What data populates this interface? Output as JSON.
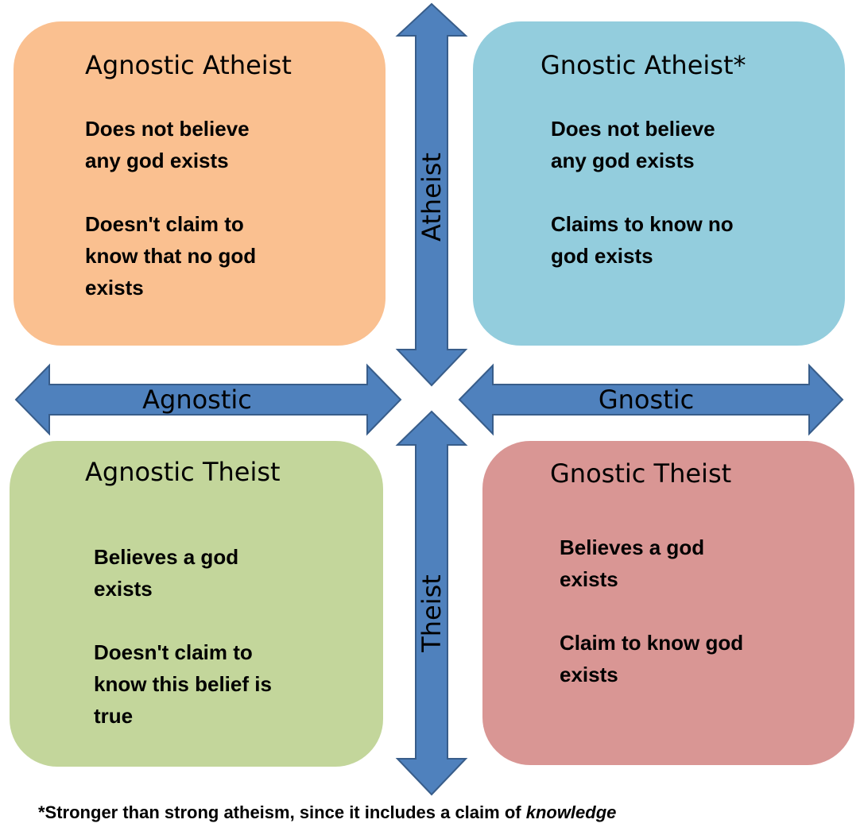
{
  "colors": {
    "agnostic_atheist_fill": "#FAC090",
    "gnostic_atheist_fill": "#93CDDD",
    "agnostic_theist_fill": "#C3D69B",
    "gnostic_theist_fill": "#D99694",
    "arrow_fill": "#4F81BD",
    "arrow_stroke": "#385D8A"
  },
  "quadrants": {
    "agnostic_atheist": {
      "title": "Agnostic Atheist",
      "belief": "Does not believe\nany god exists",
      "knowledge": "Doesn't claim to\nknow that no god\nexists"
    },
    "gnostic_atheist": {
      "title": "Gnostic Atheist*",
      "belief": "Does not believe\nany god exists",
      "knowledge": "Claims to know no\ngod exists"
    },
    "agnostic_theist": {
      "title": "Agnostic Theist",
      "belief": "Believes a god\nexists",
      "knowledge": "Doesn't claim to\nknow this belief is\ntrue"
    },
    "gnostic_theist": {
      "title": "Gnostic Theist",
      "belief": "Believes a god\nexists",
      "knowledge": "Claim to know god\nexists"
    }
  },
  "axes": {
    "top": "Atheist",
    "bottom": "Theist",
    "left": "Agnostic",
    "right": "Gnostic"
  },
  "footnote": {
    "text": "*Stronger than strong atheism, since it includes a claim of ",
    "emphasis": "knowledge"
  }
}
